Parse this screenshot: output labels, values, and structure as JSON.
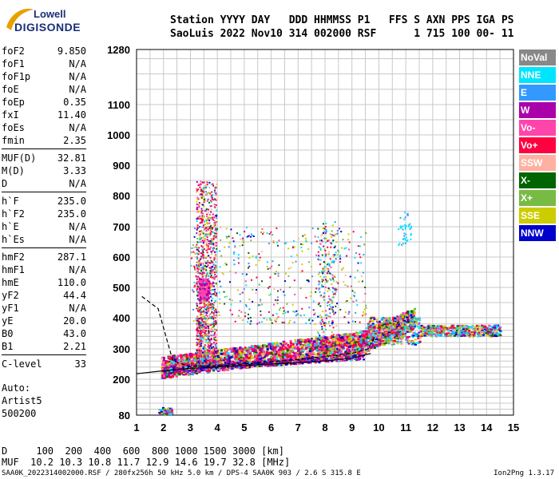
{
  "logo": {
    "line1": "Lowell",
    "line2": "DIGISONDE"
  },
  "header": {
    "line1": "Station YYYY DAY   DDD HHMMSS P1   FFS S AXN PPS IGA PS",
    "line2": "SaoLuis 2022 Nov10 314 002000 RSF      1 715 100 00- 11"
  },
  "params": {
    "group1": [
      {
        "k": "foF2",
        "v": "9.850"
      },
      {
        "k": "foF1",
        "v": "N/A"
      },
      {
        "k": "foF1p",
        "v": "N/A"
      },
      {
        "k": "foE",
        "v": "N/A"
      },
      {
        "k": "foEp",
        "v": "0.35"
      },
      {
        "k": "fxI",
        "v": "11.40"
      },
      {
        "k": "foEs",
        "v": "N/A"
      },
      {
        "k": "fmin",
        "v": "2.35"
      }
    ],
    "group2": [
      {
        "k": "MUF(D)",
        "v": "32.81"
      },
      {
        "k": "M(D)",
        "v": "3.33"
      },
      {
        "k": "D",
        "v": "N/A"
      }
    ],
    "group3": [
      {
        "k": "h`F",
        "v": "235.0"
      },
      {
        "k": "h`F2",
        "v": "235.0"
      },
      {
        "k": "h`E",
        "v": "N/A"
      },
      {
        "k": "h`Es",
        "v": "N/A"
      }
    ],
    "group4": [
      {
        "k": "hmF2",
        "v": "287.1"
      },
      {
        "k": "hmF1",
        "v": "N/A"
      },
      {
        "k": "hmE",
        "v": "110.0"
      },
      {
        "k": "yF2",
        "v": "44.4"
      },
      {
        "k": "yF1",
        "v": "N/A"
      },
      {
        "k": "yE",
        "v": "20.0"
      },
      {
        "k": "B0",
        "v": "43.0"
      },
      {
        "k": "B1",
        "v": "2.21"
      }
    ],
    "group5": [
      {
        "k": "C-level",
        "v": "33"
      }
    ]
  },
  "auto": {
    "line1": "Auto:",
    "line2": "Artist5",
    "line3": "500200"
  },
  "legend": [
    {
      "label": "NoVal",
      "color": "#888888"
    },
    {
      "label": "NNE",
      "color": "#00e5ff"
    },
    {
      "label": "E",
      "color": "#3399ff"
    },
    {
      "label": "W",
      "color": "#aa00aa"
    },
    {
      "label": "Vo-",
      "color": "#ff44aa"
    },
    {
      "label": "Vo+",
      "color": "#ff0040"
    },
    {
      "label": "SSW",
      "color": "#ffb0a0"
    },
    {
      "label": "X-",
      "color": "#006400"
    },
    {
      "label": "X+",
      "color": "#77bb44"
    },
    {
      "label": "SSE",
      "color": "#cccc00"
    },
    {
      "label": "NNW",
      "color": "#0000cc"
    }
  ],
  "muf_table": {
    "line1": "D     100  200  400  600  800 1000 1500 3000 [km]",
    "line2": "MUF  10.2 10.3 10.8 11.7 12.9 14.6 19.7 32.8 [MHz]"
  },
  "footer": {
    "file": "SAA0K_2022314002000.RSF / 280fx256h 50 kHz 5.0 km / DPS-4 SAA0K 903 / 2.6 S 315.8 E",
    "version": "Ion2Png 1.3.17"
  },
  "chart_data": {
    "type": "scatter",
    "xlabel": "",
    "ylabel": "",
    "xlim": [
      1,
      15
    ],
    "ylim": [
      80,
      1280
    ],
    "x_ticks": [
      "1",
      "2",
      "3",
      "4",
      "5",
      "6",
      "7",
      "8",
      "9",
      "10",
      "11",
      "12",
      "13",
      "14",
      "15"
    ],
    "y_ticks": [
      "80",
      "200",
      "300",
      "400",
      "500",
      "600",
      "700",
      "800",
      "900",
      "1000",
      "1100",
      "1280"
    ],
    "grid": true,
    "height_scale": "nonlinear (expanded 80–400 km)",
    "clusters": [
      {
        "name": "F-trace",
        "x_range": [
          2.35,
          11.4
        ],
        "y_center": [
          230,
          340
        ],
        "y_spread": 40,
        "weight": 0.5
      },
      {
        "name": "spread-F",
        "x_range": [
          3.2,
          3.9
        ],
        "y_range": [
          250,
          900
        ],
        "weight": 0.2
      },
      {
        "name": "F-high",
        "x_range": [
          9.5,
          14.5
        ],
        "y_range": [
          350,
          430
        ],
        "weight": 0.3
      },
      {
        "name": "low-echo",
        "x_range": [
          1.8,
          2.3
        ],
        "y_range": [
          80,
          120
        ],
        "weight": 0.05
      }
    ],
    "fitted_profile": {
      "name": "",
      "x": [
        1.2,
        1.8,
        2.35,
        3.0,
        4.0,
        5.0,
        6.0,
        7.0,
        8.0,
        9.0,
        9.6,
        9.85
      ],
      "y": [
        470,
        430,
        260,
        242,
        245,
        250,
        258,
        265,
        275,
        285,
        300,
        340
      ]
    },
    "lower_trace": {
      "name": "",
      "x": [
        1.0,
        2.0,
        3.0,
        4.0,
        5.0,
        6.0,
        7.0,
        8.0,
        9.0,
        9.7
      ],
      "y": [
        218,
        228,
        236,
        240,
        245,
        250,
        255,
        260,
        270,
        285
      ]
    }
  }
}
